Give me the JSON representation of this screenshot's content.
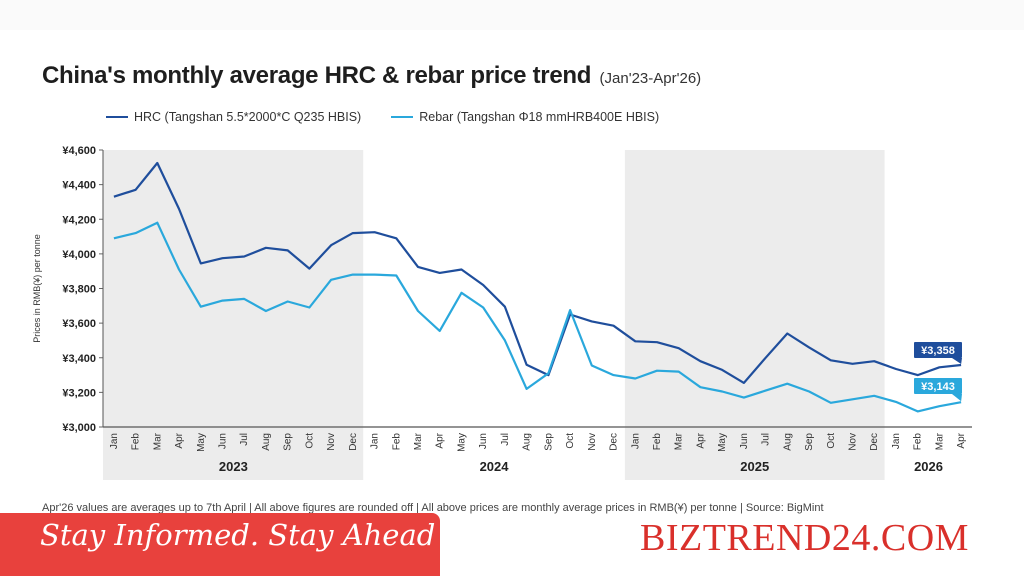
{
  "title": "China's monthly average HRC & rebar price trend",
  "subtitle": "(Jan'23-Apr'26)",
  "footnote": "Apr'26 values are averages up to 7th April  |  All above figures are rounded off  |  All above prices are monthly average prices in RMB(¥) per tonne  |  Source: BigMint",
  "tagline": "Stay Informed. Stay Ahead",
  "brand": "BIZTREND24.COM",
  "colors": {
    "hrc": "#1f4e9c",
    "rebar": "#2aa8dc",
    "shade": "#ececec",
    "banner": "#e8413d"
  },
  "chart_data": {
    "type": "line",
    "ylabel": "Prices in RMB(¥) per tonne",
    "ylim": [
      3000,
      4600
    ],
    "yticks": [
      3000,
      3200,
      3400,
      3600,
      3800,
      4000,
      4200,
      4400,
      4600
    ],
    "ytick_labels": [
      "¥3,000",
      "¥3,200",
      "¥3,400",
      "¥3,600",
      "¥3,800",
      "¥4,000",
      "¥4,200",
      "¥4,400",
      "¥4,600"
    ],
    "categories": [
      "Jan",
      "Feb",
      "Mar",
      "Apr",
      "May",
      "Jun",
      "Jul",
      "Aug",
      "Sep",
      "Oct",
      "Nov",
      "Dec",
      "Jan",
      "Feb",
      "Mar",
      "Apr",
      "May",
      "Jun",
      "Jul",
      "Aug",
      "Sep",
      "Oct",
      "Nov",
      "Dec",
      "Jan",
      "Feb",
      "Mar",
      "Apr",
      "May",
      "Jun",
      "Jul",
      "Aug",
      "Sep",
      "Oct",
      "Nov",
      "Dec",
      "Jan",
      "Feb",
      "Mar",
      "Apr"
    ],
    "year_groups": [
      {
        "label": "2023",
        "months": 12,
        "shaded": true
      },
      {
        "label": "2024",
        "months": 12,
        "shaded": false
      },
      {
        "label": "2025",
        "months": 12,
        "shaded": true
      },
      {
        "label": "2026",
        "months": 4,
        "shaded": false
      }
    ],
    "series": [
      {
        "name": "HRC (Tangshan 5.5*2000*C Q235 HBIS)",
        "color": "#1f4e9c",
        "values": [
          4330,
          4370,
          4525,
          4260,
          3945,
          3975,
          3985,
          4035,
          4020,
          3915,
          4050,
          4120,
          4125,
          4090,
          3925,
          3890,
          3910,
          3820,
          3695,
          3360,
          3300,
          3650,
          3610,
          3585,
          3495,
          3490,
          3455,
          3380,
          3330,
          3255,
          3400,
          3540,
          3460,
          3385,
          3365,
          3380,
          3335,
          3300,
          3345,
          3358
        ],
        "end_label": "¥3,358"
      },
      {
        "name": "Rebar (Tangshan Φ18 mmHRB400E HBIS)",
        "color": "#2aa8dc",
        "values": [
          4090,
          4120,
          4180,
          3910,
          3695,
          3730,
          3740,
          3670,
          3725,
          3690,
          3850,
          3880,
          3880,
          3875,
          3670,
          3555,
          3775,
          3690,
          3500,
          3220,
          3310,
          3675,
          3355,
          3300,
          3280,
          3325,
          3320,
          3230,
          3205,
          3170,
          3210,
          3250,
          3205,
          3140,
          3160,
          3180,
          3145,
          3090,
          3120,
          3143
        ],
        "end_label": "¥3,143"
      }
    ],
    "legend": "top-left",
    "grid": false
  }
}
